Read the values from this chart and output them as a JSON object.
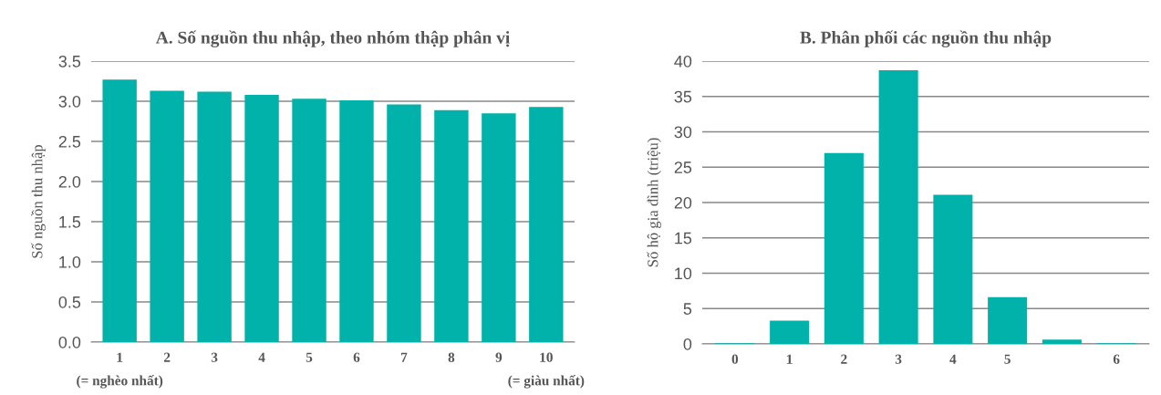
{
  "chart_data": [
    {
      "type": "bar",
      "title": "A. Số nguồn thu nhập, theo nhóm thập phân vị",
      "ylabel": "Số nguồn thu nhập",
      "categories": [
        "1",
        "2",
        "3",
        "4",
        "5",
        "6",
        "7",
        "8",
        "9",
        "10"
      ],
      "values": [
        3.27,
        3.13,
        3.12,
        3.08,
        3.03,
        3.01,
        2.96,
        2.89,
        2.85,
        2.93
      ],
      "color": "#00b2a9",
      "ylim": [
        0,
        3.5
      ],
      "yticks": [
        {
          "value": 0,
          "label": "0.0"
        },
        {
          "value": 0.5,
          "label": "0.5"
        },
        {
          "value": 1,
          "label": "1.0"
        },
        {
          "value": 1.5,
          "label": "1.5"
        },
        {
          "value": 2,
          "label": "2.0"
        },
        {
          "value": 2.5,
          "label": "2.5"
        },
        {
          "value": 3,
          "label": "3.0"
        },
        {
          "value": 3.5,
          "label": "3.5"
        }
      ],
      "grid": "y",
      "annotations": [
        "(= nghèo nhất)",
        "(= giàu nhất)"
      ]
    },
    {
      "type": "bar",
      "title": "B. Phân phối các nguồn thu nhập",
      "ylabel": "Số hộ gia đình (triệu)",
      "categories": [
        "0",
        "1",
        "2",
        "3",
        "4",
        "5",
        null,
        "6"
      ],
      "values": [
        0.1,
        3.3,
        27.0,
        38.7,
        21.1,
        6.6,
        0.6,
        0.1
      ],
      "color": "#00b2a9",
      "ylim": [
        0,
        40
      ],
      "yticks": [
        0,
        5,
        10,
        15,
        20,
        25,
        30,
        35,
        40
      ],
      "grid": "y"
    }
  ]
}
